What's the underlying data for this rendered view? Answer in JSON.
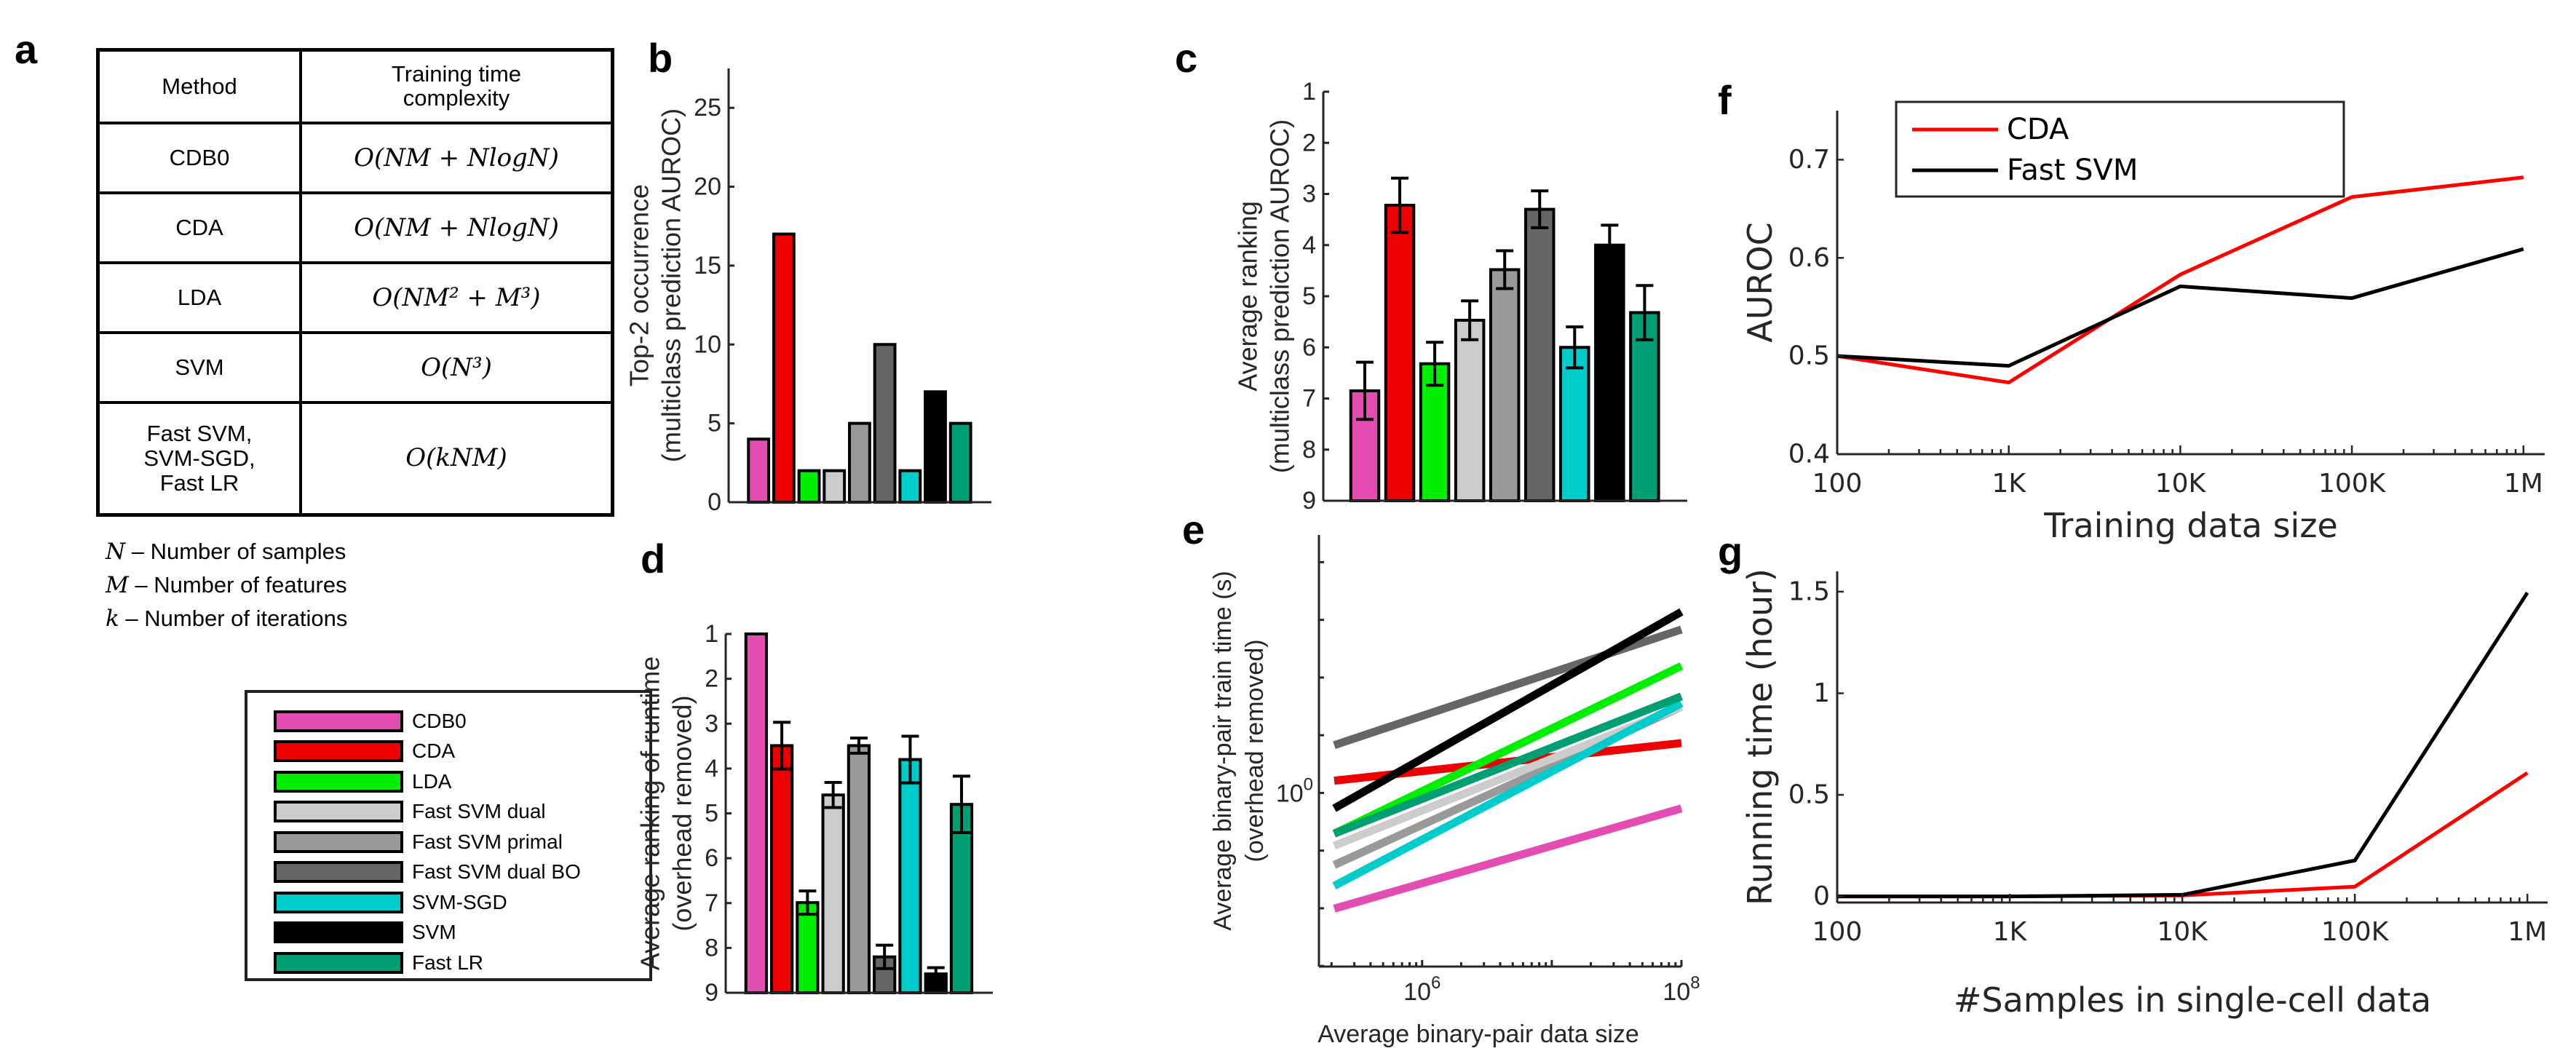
{
  "panel_labels": {
    "a": "a",
    "b": "b",
    "c": "c",
    "d": "d",
    "e": "e",
    "f": "f",
    "g": "g"
  },
  "table": {
    "headers": [
      "Method",
      "Training time complexity"
    ],
    "rows": [
      {
        "method": "CDB0",
        "complexity": "O(NM + NlogN)"
      },
      {
        "method": "CDA",
        "complexity": "O(NM + NlogN)"
      },
      {
        "method": "LDA",
        "complexity": "O(NM² + M³)"
      },
      {
        "method": "SVM",
        "complexity": "O(N³)"
      },
      {
        "method": "Fast SVM, SVM-SGD, Fast LR",
        "complexity": "O(kNM)"
      }
    ],
    "notes": [
      {
        "symbol": "N",
        "text": "– Number of samples"
      },
      {
        "symbol": "M",
        "text": "– Number of features"
      },
      {
        "symbol": "k",
        "text": "– Number of iterations"
      }
    ]
  },
  "methods": [
    {
      "name": "CDB0",
      "color": "#E34DB2"
    },
    {
      "name": "CDA",
      "color": "#EE0000"
    },
    {
      "name": "LDA",
      "color": "#00EE00"
    },
    {
      "name": "Fast SVM dual",
      "color": "#CCCCCC"
    },
    {
      "name": "Fast SVM primal",
      "color": "#999999"
    },
    {
      "name": "Fast SVM dual BO",
      "color": "#666666"
    },
    {
      "name": "SVM-SGD",
      "color": "#00CCCC"
    },
    {
      "name": "SVM",
      "color": "#000000"
    },
    {
      "name": "Fast LR",
      "color": "#009E73"
    }
  ],
  "chart_data": [
    {
      "panel": "b",
      "type": "bar",
      "ylabel": [
        "Top-2 occurrence",
        "(multiclass prediction AUROC)"
      ],
      "categories": [
        "CDB0",
        "CDA",
        "LDA",
        "Fast SVM dual",
        "Fast SVM primal",
        "Fast SVM dual BO",
        "SVM-SGD",
        "SVM",
        "Fast LR"
      ],
      "values": [
        4,
        17,
        2,
        2,
        5,
        10,
        2,
        7,
        5
      ],
      "ylim": [
        0,
        27.5
      ],
      "yticks": [
        0,
        5,
        10,
        15,
        20,
        25
      ],
      "y_reversed": false
    },
    {
      "panel": "c",
      "type": "bar",
      "ylabel": [
        "Average ranking",
        "(multiclass prediction AUROC)"
      ],
      "categories": [
        "CDB0",
        "CDA",
        "LDA",
        "Fast SVM dual",
        "Fast SVM primal",
        "Fast SVM dual BO",
        "SVM-SGD",
        "SVM",
        "Fast LR"
      ],
      "values": [
        6.85,
        3.22,
        6.32,
        5.47,
        4.48,
        3.3,
        6.0,
        4.0,
        5.32
      ],
      "errors": [
        0.56,
        0.53,
        0.42,
        0.38,
        0.37,
        0.36,
        0.4,
        0.39,
        0.53
      ],
      "ylim": [
        1,
        9
      ],
      "yticks": [
        1,
        2,
        3,
        4,
        5,
        6,
        7,
        8,
        9
      ],
      "y_reversed": true
    },
    {
      "panel": "d",
      "type": "bar",
      "ylabel": [
        "Average ranking of runtime",
        "(overhead removed)"
      ],
      "categories": [
        "CDB0",
        "CDA",
        "LDA",
        "Fast SVM dual",
        "Fast SVM primal",
        "Fast SVM dual BO",
        "SVM-SGD",
        "SVM",
        "Fast LR"
      ],
      "values": [
        1.0,
        3.49,
        6.99,
        4.59,
        3.49,
        8.2,
        3.8,
        8.58,
        4.8
      ],
      "errors": [
        0,
        0.52,
        0.26,
        0.28,
        0.17,
        0.26,
        0.52,
        0.14,
        0.63
      ],
      "ylim": [
        1,
        9
      ],
      "yticks": [
        1,
        2,
        3,
        4,
        5,
        6,
        7,
        8,
        9
      ],
      "y_reversed": true
    },
    {
      "panel": "e",
      "type": "line",
      "xlabel": "Average binary-pair data size",
      "ylabel": [
        "Average binary-pair train time (s)",
        "(overhead removed)"
      ],
      "xscale": "log",
      "yscale": "log",
      "xlim": [
        160000,
        100000000
      ],
      "ylim": [
        0.5,
        2.8
      ],
      "xticks": [
        {
          "value": 1000000,
          "base": "10",
          "exp": "6"
        },
        {
          "value": 100000000,
          "base": "10",
          "exp": "8"
        }
      ],
      "yticks": [
        {
          "value": 1,
          "base": "10",
          "exp": "0"
        }
      ],
      "x": [
        210000,
        100000000
      ],
      "series": [
        {
          "name": "CDB0",
          "values": [
            0.63,
            0.94
          ]
        },
        {
          "name": "Fast SVM dual BO",
          "values": [
            1.21,
            1.92
          ]
        },
        {
          "name": "CDA",
          "values": [
            1.05,
            1.22
          ]
        },
        {
          "name": "Fast SVM primal",
          "values": [
            0.75,
            1.41
          ]
        },
        {
          "name": "Fast SVM dual",
          "values": [
            0.81,
            1.41
          ]
        },
        {
          "name": "SVM-SGD",
          "values": [
            0.69,
            1.43
          ]
        },
        {
          "name": "LDA",
          "values": [
            0.85,
            1.66
          ]
        },
        {
          "name": "Fast LR",
          "values": [
            0.85,
            1.47
          ]
        },
        {
          "name": "SVM",
          "values": [
            0.94,
            2.06
          ]
        }
      ]
    },
    {
      "panel": "f",
      "type": "line",
      "xlabel": "Training data size",
      "ylabel": "AUROC",
      "xscale": "log",
      "xlim": [
        100,
        1330000
      ],
      "ylim": [
        0.4,
        0.75
      ],
      "x": [
        100,
        1000,
        10000,
        100000,
        1000000
      ],
      "xticklabels": [
        "100",
        "1K",
        "10K",
        "100K",
        "1M"
      ],
      "yticks": [
        0.4,
        0.5,
        0.6,
        0.7
      ],
      "legend": "top-left",
      "series": [
        {
          "name": "CDA",
          "color": "#FF0000",
          "values": [
            0.5,
            0.473,
            0.583,
            0.662,
            0.682
          ]
        },
        {
          "name": "Fast SVM",
          "color": "#000000",
          "values": [
            0.5,
            0.49,
            0.571,
            0.559,
            0.609
          ]
        }
      ]
    },
    {
      "panel": "g",
      "type": "line",
      "xlabel": "#Samples in single-cell data",
      "ylabel": "Running time (hour)",
      "xscale": "log",
      "xlim": [
        100,
        1310000
      ],
      "ylim": [
        -0.03,
        1.6
      ],
      "x": [
        100,
        1000,
        10000,
        100000,
        1000000
      ],
      "xticklabels": [
        "100",
        "1K",
        "10K",
        "100K",
        "1M"
      ],
      "yticks": [
        0,
        0.5,
        1,
        1.5
      ],
      "series": [
        {
          "name": "CDA",
          "color": "#FF0000",
          "values": [
            0.0,
            0.0,
            0.005,
            0.048,
            0.608
          ]
        },
        {
          "name": "Fast SVM",
          "color": "#000000",
          "values": [
            0.0,
            0.0,
            0.008,
            0.177,
            1.495
          ]
        }
      ]
    }
  ]
}
